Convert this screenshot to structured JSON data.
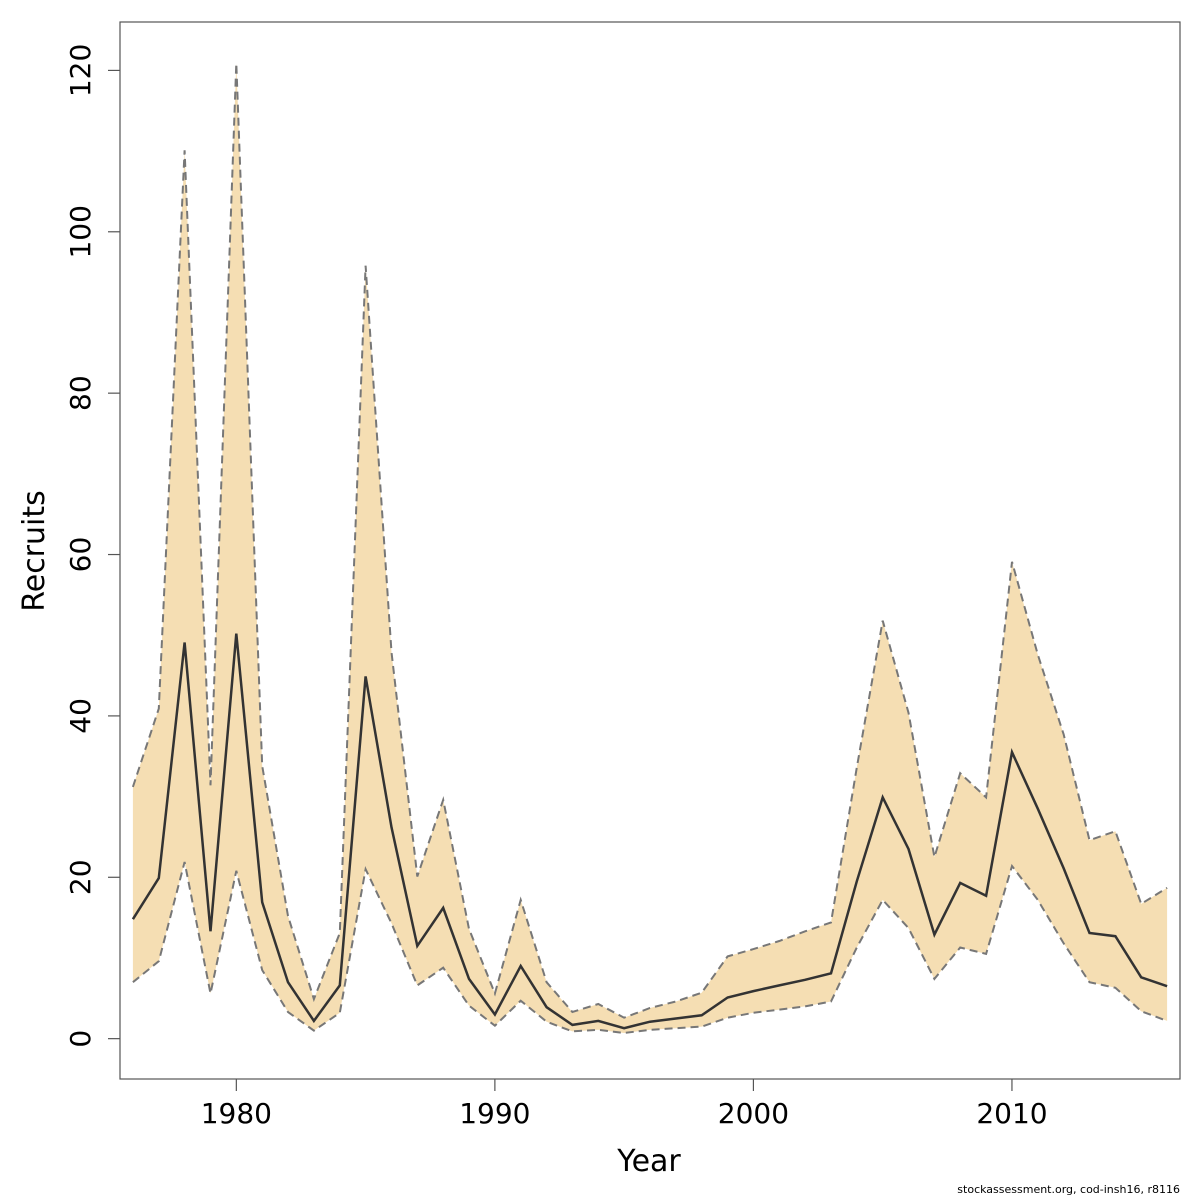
{
  "chart_data": {
    "type": "line",
    "xlabel": "Year",
    "ylabel": "Recruits",
    "xlim": [
      1975.5,
      2016.5
    ],
    "ylim": [
      -5,
      126
    ],
    "xticks": [
      1980,
      1990,
      2000,
      2010
    ],
    "yticks": [
      0,
      20,
      40,
      60,
      80,
      100,
      120
    ],
    "grid": false,
    "x": [
      1976,
      1977,
      1978,
      1979,
      1980,
      1981,
      1982,
      1983,
      1984,
      1985,
      1986,
      1987,
      1988,
      1989,
      1990,
      1991,
      1992,
      1993,
      1994,
      1995,
      1996,
      1997,
      1998,
      1999,
      2000,
      2001,
      2002,
      2003,
      2004,
      2005,
      2006,
      2007,
      2008,
      2009,
      2010,
      2011,
      2012,
      2013,
      2014,
      2015,
      2016
    ],
    "series": [
      {
        "role": "estimate",
        "values": [
          14.8,
          19.9,
          49.1,
          13.3,
          50.2,
          16.9,
          7.0,
          2.2,
          6.6,
          44.9,
          26.2,
          11.5,
          16.2,
          7.4,
          3.0,
          9.0,
          3.9,
          1.7,
          2.2,
          1.3,
          2.1,
          2.5,
          2.9,
          5.1,
          5.9,
          6.6,
          7.3,
          8.1,
          19.5,
          29.9,
          23.5,
          12.9,
          19.3,
          17.7,
          35.5,
          28.5,
          21.1,
          13.1,
          12.7,
          7.6,
          6.5
        ]
      },
      {
        "role": "upper",
        "values": [
          31.2,
          40.9,
          110.1,
          31.4,
          120.9,
          33.8,
          15.2,
          4.9,
          13.1,
          95.8,
          47.9,
          20.1,
          29.6,
          13.6,
          5.6,
          17.2,
          7.0,
          3.3,
          4.3,
          2.6,
          3.8,
          4.6,
          5.7,
          10.2,
          11.1,
          12.1,
          13.3,
          14.4,
          33.6,
          51.8,
          40.4,
          22.5,
          32.9,
          29.9,
          59.1,
          47.6,
          37.7,
          24.6,
          25.7,
          16.7,
          18.7
        ]
      },
      {
        "role": "lower",
        "values": [
          7.0,
          9.6,
          21.9,
          5.6,
          20.8,
          8.5,
          3.3,
          1.0,
          3.2,
          21.0,
          14.3,
          6.6,
          8.8,
          4.1,
          1.6,
          4.7,
          2.1,
          0.9,
          1.1,
          0.7,
          1.1,
          1.3,
          1.5,
          2.6,
          3.2,
          3.6,
          4.0,
          4.6,
          11.3,
          17.2,
          13.7,
          7.4,
          11.3,
          10.5,
          21.4,
          17.2,
          11.8,
          7.0,
          6.3,
          3.4,
          2.2
        ]
      }
    ],
    "colors": {
      "band": "#f5deb3",
      "estimate_line": "#333333",
      "bound_line": "#777777",
      "frame": "#555555"
    }
  },
  "footer": {
    "text": "stockassessment.org, cod-insh16, r8116"
  }
}
